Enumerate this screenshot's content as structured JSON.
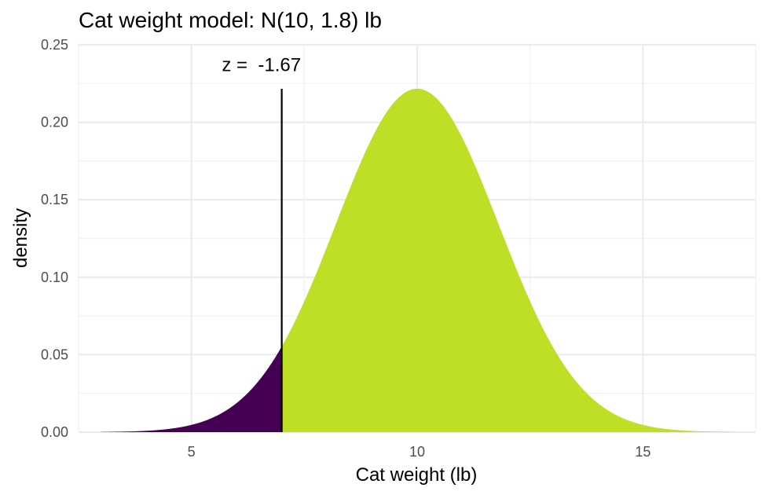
{
  "chart_data": {
    "type": "area",
    "title": "Cat weight model: N(10, 1.8) lb",
    "xlabel": "Cat weight (lb)",
    "ylabel": "density",
    "distribution": {
      "family": "normal",
      "mean": 10,
      "sd": 1.8
    },
    "xlim": [
      2.5,
      17.5
    ],
    "ylim": [
      0,
      0.25
    ],
    "x_ticks": [
      5,
      10,
      15
    ],
    "x_tick_labels": [
      "5",
      "10",
      "15"
    ],
    "y_ticks": [
      0,
      0.05,
      0.1,
      0.15,
      0.2,
      0.25
    ],
    "y_tick_labels": [
      "0.00",
      "0.05",
      "0.10",
      "0.15",
      "0.20",
      "0.25"
    ],
    "curve_x_range": [
      3,
      17
    ],
    "cutoff_x": 7,
    "cutoff_line_top_y": 0.2216,
    "annotation": {
      "text": "z =  -1.67",
      "x": 6.55,
      "y": 0.237
    },
    "series": [
      {
        "region": "lower tail (x < 7)",
        "color": "#440154",
        "x_range": [
          3,
          7
        ]
      },
      {
        "region": "upper (x ≥ 7)",
        "color": "#bddf26",
        "x_range": [
          7,
          17
        ]
      }
    ],
    "grid": true,
    "legend": "none"
  }
}
